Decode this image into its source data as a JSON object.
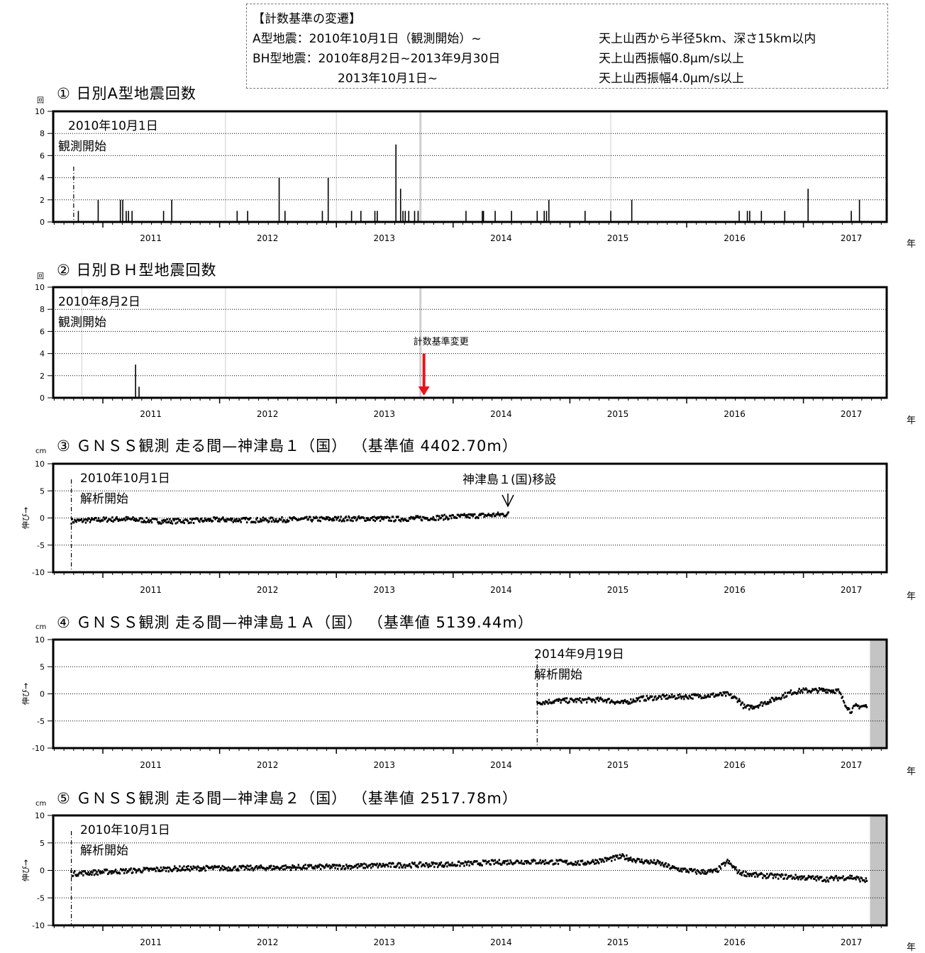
{
  "legend": {
    "title": "【計数基準の変遷】",
    "line1_left": "A型地震：2010年10月1日（観測開始）~",
    "line1_right": "天上山西から半径5km、深さ15km以内",
    "line2_left": "BH型地震：2010年8月2日~2013年9月30日",
    "line2_right": "天上山西振幅0.8μm/s以上",
    "line3_left": "2013年10月1日~",
    "line3_right": "天上山西振幅4.0μm/s以上"
  },
  "colors": {
    "arrow": "#e8141b",
    "maintenance": "#c4c4c4",
    "grey_line": "#cfcfcf"
  },
  "chart_data": [
    {
      "type": "bar",
      "title": "① 日別A型地震回数",
      "ylabel": "回",
      "xlabel": "年",
      "xlim": [
        2010.55,
        2017.75
      ],
      "ylim": [
        0,
        10
      ],
      "yticks": [
        0,
        2,
        4,
        6,
        8,
        10
      ],
      "xtick_labels": [
        "2011",
        "2012",
        "2013",
        "2014",
        "2015",
        "2016",
        "2017"
      ],
      "annotations": [
        "2010年10月1日",
        "観測開始"
      ],
      "start_marker": 2010.75,
      "gray_lines": [
        2012.05,
        2013.0,
        2013.72,
        2015.35
      ],
      "thick_gray_line": 2013.72,
      "bars": [
        {
          "x": 2010.79,
          "y": 1
        },
        {
          "x": 2010.96,
          "y": 2
        },
        {
          "x": 2011.15,
          "y": 2
        },
        {
          "x": 2011.17,
          "y": 2
        },
        {
          "x": 2011.2,
          "y": 1
        },
        {
          "x": 2011.22,
          "y": 1
        },
        {
          "x": 2011.25,
          "y": 1
        },
        {
          "x": 2011.52,
          "y": 1
        },
        {
          "x": 2011.59,
          "y": 2
        },
        {
          "x": 2012.15,
          "y": 1
        },
        {
          "x": 2012.24,
          "y": 1
        },
        {
          "x": 2012.51,
          "y": 4
        },
        {
          "x": 2012.56,
          "y": 1
        },
        {
          "x": 2012.88,
          "y": 1
        },
        {
          "x": 2012.93,
          "y": 4
        },
        {
          "x": 2013.13,
          "y": 1
        },
        {
          "x": 2013.21,
          "y": 1
        },
        {
          "x": 2013.33,
          "y": 1
        },
        {
          "x": 2013.35,
          "y": 1
        },
        {
          "x": 2013.51,
          "y": 7
        },
        {
          "x": 2013.55,
          "y": 3
        },
        {
          "x": 2013.57,
          "y": 1
        },
        {
          "x": 2013.59,
          "y": 1
        },
        {
          "x": 2013.62,
          "y": 1
        },
        {
          "x": 2013.67,
          "y": 1
        },
        {
          "x": 2013.7,
          "y": 1
        },
        {
          "x": 2014.11,
          "y": 1
        },
        {
          "x": 2014.25,
          "y": 1
        },
        {
          "x": 2014.26,
          "y": 1
        },
        {
          "x": 2014.36,
          "y": 1
        },
        {
          "x": 2014.5,
          "y": 1
        },
        {
          "x": 2014.72,
          "y": 1
        },
        {
          "x": 2014.78,
          "y": 1
        },
        {
          "x": 2014.8,
          "y": 1
        },
        {
          "x": 2014.82,
          "y": 2
        },
        {
          "x": 2015.13,
          "y": 1
        },
        {
          "x": 2015.35,
          "y": 1
        },
        {
          "x": 2015.53,
          "y": 2
        },
        {
          "x": 2016.45,
          "y": 1
        },
        {
          "x": 2016.52,
          "y": 1
        },
        {
          "x": 2016.54,
          "y": 1
        },
        {
          "x": 2016.64,
          "y": 1
        },
        {
          "x": 2016.84,
          "y": 1
        },
        {
          "x": 2017.04,
          "y": 3
        },
        {
          "x": 2017.41,
          "y": 1
        },
        {
          "x": 2017.48,
          "y": 2
        }
      ]
    },
    {
      "type": "bar",
      "title": "② 日別ＢＨ型地震回数",
      "ylabel": "回",
      "xlabel": "年",
      "xlim": [
        2010.55,
        2017.75
      ],
      "ylim": [
        0,
        10
      ],
      "yticks": [
        0,
        2,
        4,
        6,
        8,
        10
      ],
      "xtick_labels": [
        "2011",
        "2012",
        "2013",
        "2014",
        "2015",
        "2016",
        "2017"
      ],
      "annotations": [
        "2010年8月2日",
        "観測開始"
      ],
      "arrow_annotation": "計数基準変更",
      "arrow_x": 2013.75,
      "gray_lines": [
        2010.82,
        2012.05,
        2013.0,
        2013.72
      ],
      "thick_gray_line": 2013.72,
      "bars": [
        {
          "x": 2011.28,
          "y": 3
        },
        {
          "x": 2011.31,
          "y": 1
        }
      ]
    },
    {
      "type": "scatter",
      "title": "③ ＧＮＳＳ観測 走る間—神津島１（国） （基準値 4402.70m）",
      "ylabel": "伸び→",
      "yunit": "cm",
      "xlabel": "年",
      "xlim": [
        2010.55,
        2017.75
      ],
      "ylim": [
        -10,
        10
      ],
      "yticks": [
        -10,
        -5,
        0,
        5,
        10
      ],
      "xtick_labels": [
        "2011",
        "2012",
        "2013",
        "2014",
        "2015",
        "2016",
        "2017"
      ],
      "annotations": [
        "2010年10月1日",
        "解析開始"
      ],
      "relocation_label": "神津島１(国)移設",
      "start_marker": 2010.73,
      "series": [
        {
          "start": 2010.73,
          "end": 2014.48,
          "points": [
            [
              2010.73,
              -0.6
            ],
            [
              2011.0,
              -0.3
            ],
            [
              2011.2,
              -0.2
            ],
            [
              2011.5,
              -0.6
            ],
            [
              2011.8,
              -0.5
            ],
            [
              2012.0,
              -0.3
            ],
            [
              2012.3,
              -0.4
            ],
            [
              2012.6,
              -0.3
            ],
            [
              2012.9,
              -0.2
            ],
            [
              2013.2,
              -0.1
            ],
            [
              2013.5,
              -0.2
            ],
            [
              2013.8,
              0.0
            ],
            [
              2014.0,
              0.2
            ],
            [
              2014.2,
              0.4
            ],
            [
              2014.48,
              0.7
            ]
          ]
        }
      ]
    },
    {
      "type": "scatter",
      "title": "④ ＧＮＳＳ観測 走る間—神津島１Ａ（国） （基準値 5139.44m）",
      "ylabel": "伸び→",
      "yunit": "cm",
      "xlabel": "年",
      "xlim": [
        2010.55,
        2017.75
      ],
      "ylim": [
        -10,
        10
      ],
      "yticks": [
        -10,
        -5,
        0,
        5,
        10
      ],
      "xtick_labels": [
        "2011",
        "2012",
        "2013",
        "2014",
        "2015",
        "2016",
        "2017"
      ],
      "annotations": [
        "2014年9月19日",
        "解析開始"
      ],
      "start_marker": 2014.72,
      "maintenance_from": 2017.57,
      "series": [
        {
          "start": 2014.72,
          "end": 2017.55,
          "points": [
            [
              2014.72,
              -1.6
            ],
            [
              2014.9,
              -1.3
            ],
            [
              2015.1,
              -1.2
            ],
            [
              2015.3,
              -1.1
            ],
            [
              2015.45,
              -1.7
            ],
            [
              2015.6,
              -0.9
            ],
            [
              2015.8,
              -0.6
            ],
            [
              2016.0,
              -0.5
            ],
            [
              2016.2,
              -0.3
            ],
            [
              2016.35,
              -0.1
            ],
            [
              2016.45,
              -1.2
            ],
            [
              2016.5,
              -2.6
            ],
            [
              2016.6,
              -2.2
            ],
            [
              2016.7,
              -1.4
            ],
            [
              2016.8,
              -0.6
            ],
            [
              2016.9,
              0.3
            ],
            [
              2017.0,
              0.6
            ],
            [
              2017.1,
              0.6
            ],
            [
              2017.2,
              0.7
            ],
            [
              2017.3,
              0.5
            ],
            [
              2017.35,
              -1.5
            ],
            [
              2017.4,
              -3.2
            ],
            [
              2017.45,
              -2.3
            ],
            [
              2017.55,
              -2.3
            ]
          ]
        }
      ]
    },
    {
      "type": "scatter",
      "title": "⑤ ＧＮＳＳ観測 走る間—神津島２（国） （基準値 2517.78m）",
      "ylabel": "伸び→",
      "yunit": "cm",
      "xlabel": "年",
      "xlim": [
        2010.55,
        2017.75
      ],
      "ylim": [
        -10,
        10
      ],
      "yticks": [
        -10,
        -5,
        0,
        5,
        10
      ],
      "xtick_labels": [
        "2011",
        "2012",
        "2013",
        "2014",
        "2015",
        "2016",
        "2017"
      ],
      "annotations": [
        "2010年10月1日",
        "解析開始"
      ],
      "start_marker": 2010.73,
      "maintenance_from": 2017.57,
      "series": [
        {
          "start": 2010.73,
          "end": 2017.55,
          "points": [
            [
              2010.73,
              -0.6
            ],
            [
              2011.0,
              -0.3
            ],
            [
              2011.3,
              0.0
            ],
            [
              2011.6,
              0.3
            ],
            [
              2011.9,
              0.4
            ],
            [
              2012.2,
              0.4
            ],
            [
              2012.5,
              0.5
            ],
            [
              2012.8,
              0.6
            ],
            [
              2013.1,
              0.7
            ],
            [
              2013.4,
              0.9
            ],
            [
              2013.7,
              1.0
            ],
            [
              2014.0,
              1.1
            ],
            [
              2014.3,
              1.4
            ],
            [
              2014.6,
              1.6
            ],
            [
              2014.9,
              1.5
            ],
            [
              2015.1,
              1.3
            ],
            [
              2015.3,
              1.9
            ],
            [
              2015.45,
              2.5
            ],
            [
              2015.6,
              1.7
            ],
            [
              2015.75,
              1.4
            ],
            [
              2015.9,
              0.3
            ],
            [
              2016.1,
              -0.3
            ],
            [
              2016.25,
              -0.2
            ],
            [
              2016.35,
              1.6
            ],
            [
              2016.45,
              -0.4
            ],
            [
              2016.6,
              -0.9
            ],
            [
              2016.8,
              -1.1
            ],
            [
              2017.0,
              -1.3
            ],
            [
              2017.2,
              -1.6
            ],
            [
              2017.4,
              -1.2
            ],
            [
              2017.55,
              -1.9
            ]
          ]
        }
      ]
    }
  ]
}
